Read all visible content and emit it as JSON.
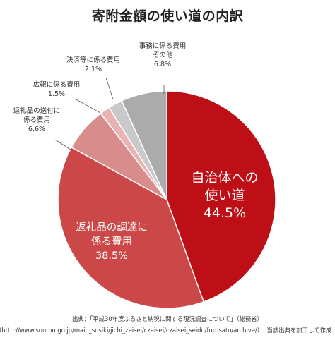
{
  "chart_data": {
    "type": "pie",
    "title": "寄附金額の使い道の内訳",
    "slices": [
      {
        "label_lines": [
          "自治体への",
          "使い道"
        ],
        "value": 44.5,
        "value_text": "44.5%",
        "color": "#bf0f16",
        "label_pos": "inside"
      },
      {
        "label_lines": [
          "返礼品の調達に",
          "係る費用"
        ],
        "value": 38.5,
        "value_text": "38.5%",
        "color": "#cc4747",
        "label_pos": "inside"
      },
      {
        "label_lines": [
          "返礼品の送付に",
          "係る費用"
        ],
        "value": 6.6,
        "value_text": "6.6%",
        "color": "#d88c8c",
        "label_pos": "outside-left"
      },
      {
        "label_lines": [
          "広報に係る費用"
        ],
        "value": 1.5,
        "value_text": "1.5%",
        "color": "#e7b3b3",
        "label_pos": "outside-top-left"
      },
      {
        "label_lines": [
          "決済等に係る費用"
        ],
        "value": 2.1,
        "value_text": "2.1%",
        "color": "#c9c9c9",
        "label_pos": "outside-top"
      },
      {
        "label_lines": [
          "事務に係る費用",
          "その他"
        ],
        "value": 6.8,
        "value_text": "6.8%",
        "color": "#ababab",
        "label_pos": "outside-top"
      }
    ],
    "start_angle": "12 o'clock",
    "direction": "clockwise",
    "legend": "none"
  },
  "source": {
    "line1": "出典：「平成30年度ふるさと納税に関する現況調査について」（総務省）",
    "line2": "（http://www.soumu.go.jp/main_sosiki/jichi_zeisei/czaisei/czaisei_seido/furusato/archive/）, 当該出典を加工して作成"
  }
}
